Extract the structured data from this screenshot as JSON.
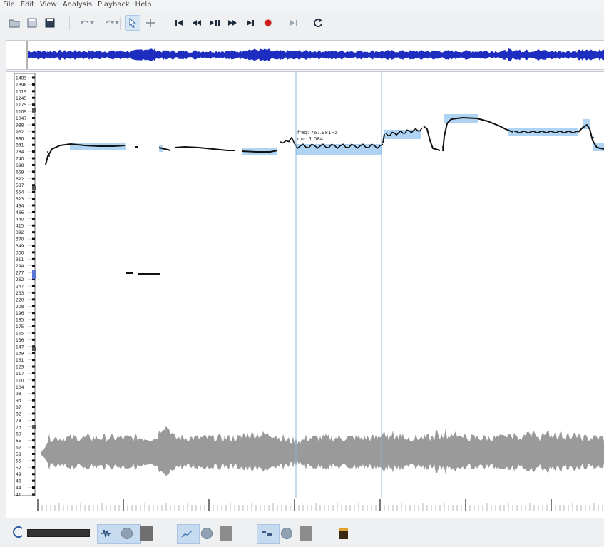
{
  "menu": [
    "File",
    "Edit",
    "View",
    "Analysis",
    "Playback",
    "Help"
  ],
  "toolbar": [
    {
      "name": "open-icon",
      "glyph": "open"
    },
    {
      "name": "save-icon",
      "glyph": "save"
    },
    {
      "name": "save-as-icon",
      "glyph": "saveas"
    },
    {
      "name": "undo-icon",
      "glyph": "undo"
    },
    {
      "name": "redo-icon",
      "glyph": "redo"
    },
    {
      "name": "select-tool-icon",
      "glyph": "select",
      "active": true
    },
    {
      "name": "move-tool-icon",
      "glyph": "move"
    },
    {
      "name": "rewind-start-icon",
      "glyph": "start"
    },
    {
      "name": "rewind-icon",
      "glyph": "rew"
    },
    {
      "name": "play-pause-icon",
      "glyph": "play"
    },
    {
      "name": "fast-forward-icon",
      "glyph": "ffw"
    },
    {
      "name": "forward-end-icon",
      "glyph": "end"
    },
    {
      "name": "record-icon",
      "glyph": "rec"
    },
    {
      "name": "constrain-playback-icon",
      "glyph": "constrain"
    },
    {
      "name": "loop-icon",
      "glyph": "loop"
    }
  ],
  "pitch_axis_labels": [
    "1483",
    "1398",
    "1319",
    "1245",
    "1175",
    "1109",
    "1047",
    "988",
    "932",
    "880",
    "831",
    "784",
    "740",
    "698",
    "659",
    "622",
    "587",
    "554",
    "523",
    "494",
    "466",
    "440",
    "415",
    "392",
    "370",
    "349",
    "330",
    "311",
    "294",
    "277",
    "262",
    "247",
    "233",
    "220",
    "208",
    "196",
    "185",
    "175",
    "165",
    "156",
    "147",
    "139",
    "131",
    "123",
    "117",
    "110",
    "104",
    "98",
    "93",
    "87",
    "82",
    "78",
    "73",
    "69",
    "65",
    "62",
    "58",
    "55",
    "52",
    "49",
    "46",
    "44",
    "41"
  ],
  "note_info": {
    "freq": "freq: 767.981Hz",
    "dur": "dur: 1.084"
  },
  "colors": {
    "waveform_overview": "#1d2dbf",
    "note_box": "#aed3f3",
    "pitch_track": "#111111",
    "waveform": "#9a9a9a",
    "selection_line": "#88b5e0"
  },
  "status": {
    "level_label": ""
  }
}
